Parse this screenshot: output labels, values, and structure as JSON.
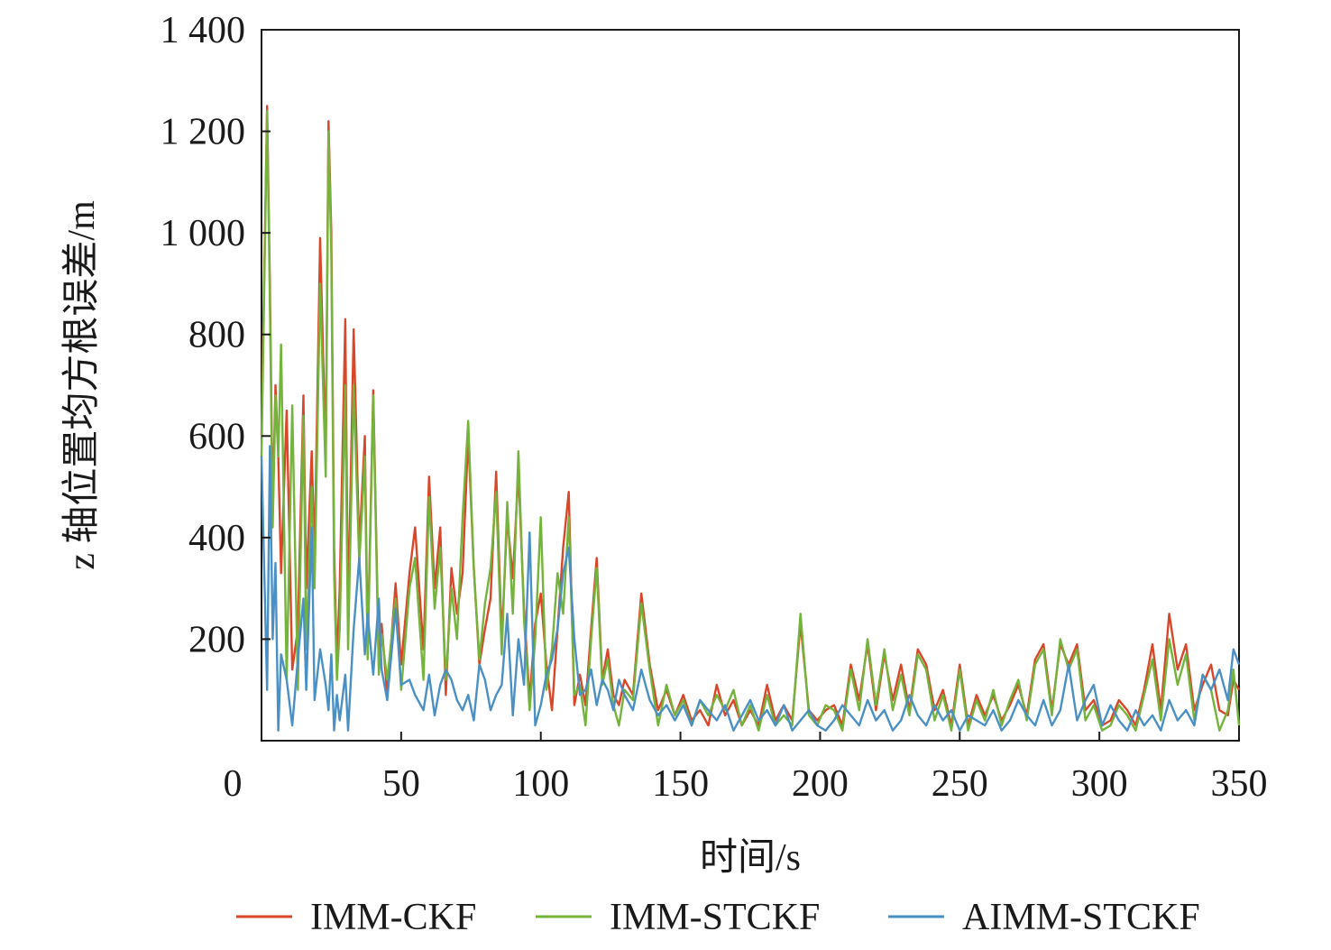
{
  "chart_data": {
    "type": "line",
    "title": "",
    "xlabel": "时间/s",
    "ylabel": "z 轴位置均方根误差/m",
    "xlim": [
      0,
      350
    ],
    "ylim": [
      0,
      1400
    ],
    "x_ticks": [
      0,
      50,
      100,
      150,
      200,
      250,
      300,
      350
    ],
    "x_tick_labels": [
      "0",
      "50",
      "100",
      "150",
      "200",
      "250",
      "300",
      "350"
    ],
    "y_ticks": [
      200,
      400,
      600,
      800,
      1000,
      1200,
      1400
    ],
    "y_tick_labels": [
      "200",
      "400",
      "600",
      "800",
      "1 000",
      "1 200",
      "1 400"
    ],
    "grid": false,
    "legend_position": "bottom",
    "series": [
      {
        "name": "IMM-CKF",
        "color": "#d9472b",
        "x": [
          0,
          2,
          3,
          4,
          5,
          6,
          7,
          9,
          11,
          13,
          15,
          16,
          18,
          19,
          21,
          23,
          24,
          25,
          26,
          27,
          28,
          30,
          31,
          33,
          35,
          37,
          38,
          40,
          42,
          43,
          45,
          48,
          50,
          53,
          55,
          58,
          60,
          62,
          64,
          66,
          68,
          70,
          72,
          74,
          76,
          78,
          80,
          82,
          84,
          86,
          88,
          90,
          92,
          94,
          96,
          98,
          100,
          102,
          104,
          106,
          108,
          110,
          112,
          114,
          116,
          118,
          120,
          122,
          124,
          126,
          128,
          130,
          133,
          136,
          139,
          142,
          145,
          148,
          151,
          154,
          157,
          160,
          163,
          166,
          169,
          172,
          175,
          178,
          181,
          184,
          187,
          190,
          193,
          196,
          199,
          202,
          205,
          208,
          211,
          214,
          217,
          220,
          223,
          226,
          229,
          232,
          235,
          238,
          241,
          244,
          247,
          250,
          253,
          256,
          259,
          262,
          265,
          268,
          271,
          274,
          277,
          280,
          283,
          286,
          289,
          292,
          295,
          298,
          301,
          304,
          307,
          310,
          313,
          316,
          319,
          322,
          325,
          328,
          331,
          334,
          337,
          340,
          343,
          346,
          348,
          350
        ],
        "y": [
          600,
          1250,
          900,
          450,
          700,
          560,
          330,
          650,
          140,
          220,
          680,
          300,
          570,
          360,
          990,
          560,
          1220,
          1000,
          380,
          150,
          300,
          830,
          250,
          810,
          380,
          600,
          180,
          690,
          150,
          230,
          90,
          310,
          150,
          330,
          420,
          180,
          520,
          300,
          420,
          90,
          340,
          250,
          330,
          600,
          340,
          150,
          220,
          280,
          530,
          200,
          440,
          320,
          530,
          260,
          80,
          230,
          290,
          150,
          60,
          220,
          380,
          490,
          70,
          130,
          70,
          220,
          360,
          120,
          180,
          90,
          70,
          120,
          90,
          290,
          150,
          60,
          100,
          50,
          90,
          40,
          60,
          30,
          110,
          50,
          80,
          30,
          60,
          30,
          110,
          40,
          70,
          40,
          230,
          60,
          40,
          60,
          70,
          30,
          150,
          80,
          190,
          60,
          170,
          80,
          150,
          60,
          180,
          150,
          60,
          100,
          30,
          150,
          30,
          90,
          50,
          90,
          40,
          70,
          110,
          50,
          160,
          190,
          60,
          190,
          150,
          190,
          60,
          80,
          30,
          40,
          80,
          60,
          30,
          100,
          190,
          60,
          250,
          140,
          190,
          60,
          110,
          150,
          60,
          50,
          120,
          100
        ]
      },
      {
        "name": "IMM-STCKF",
        "color": "#74b33c",
        "x": [
          0,
          2,
          3,
          4,
          5,
          6,
          7,
          9,
          11,
          13,
          15,
          16,
          18,
          19,
          21,
          23,
          24,
          25,
          26,
          27,
          28,
          30,
          31,
          33,
          35,
          37,
          38,
          40,
          42,
          43,
          45,
          48,
          50,
          53,
          55,
          58,
          60,
          62,
          64,
          66,
          68,
          70,
          72,
          74,
          76,
          78,
          80,
          82,
          84,
          86,
          88,
          90,
          92,
          94,
          96,
          98,
          100,
          102,
          104,
          106,
          108,
          110,
          112,
          114,
          116,
          118,
          120,
          122,
          124,
          126,
          128,
          130,
          133,
          136,
          139,
          142,
          145,
          148,
          151,
          154,
          157,
          160,
          163,
          166,
          169,
          172,
          175,
          178,
          181,
          184,
          187,
          190,
          193,
          196,
          199,
          202,
          205,
          208,
          211,
          214,
          217,
          220,
          223,
          226,
          229,
          232,
          235,
          238,
          241,
          244,
          247,
          250,
          253,
          256,
          259,
          262,
          265,
          268,
          271,
          274,
          277,
          280,
          283,
          286,
          289,
          292,
          295,
          298,
          301,
          304,
          307,
          310,
          313,
          316,
          319,
          322,
          325,
          328,
          331,
          334,
          337,
          340,
          343,
          346,
          348,
          350
        ],
        "y": [
          560,
          1240,
          860,
          420,
          680,
          560,
          780,
          120,
          660,
          100,
          640,
          180,
          500,
          300,
          900,
          520,
          1200,
          960,
          330,
          120,
          220,
          700,
          180,
          700,
          350,
          560,
          160,
          680,
          130,
          210,
          120,
          280,
          100,
          300,
          360,
          120,
          480,
          260,
          380,
          120,
          300,
          200,
          440,
          630,
          340,
          160,
          270,
          340,
          490,
          170,
          470,
          250,
          570,
          240,
          60,
          200,
          440,
          100,
          180,
          330,
          250,
          440,
          90,
          110,
          30,
          200,
          340,
          110,
          160,
          70,
          30,
          100,
          80,
          270,
          140,
          30,
          110,
          50,
          80,
          30,
          80,
          50,
          90,
          60,
          100,
          30,
          70,
          20,
          90,
          30,
          50,
          30,
          250,
          50,
          30,
          70,
          60,
          20,
          140,
          60,
          200,
          70,
          180,
          60,
          130,
          50,
          170,
          140,
          40,
          90,
          20,
          140,
          20,
          80,
          40,
          100,
          30,
          80,
          120,
          40,
          150,
          180,
          50,
          200,
          140,
          180,
          40,
          70,
          20,
          30,
          70,
          50,
          20,
          90,
          160,
          40,
          200,
          110,
          170,
          40,
          130,
          100,
          20,
          60,
          140,
          30
        ]
      },
      {
        "name": "AIMM-STCKF",
        "color": "#4a90c4",
        "x": [
          0,
          2,
          3,
          4,
          5,
          6,
          7,
          9,
          11,
          13,
          15,
          16,
          18,
          19,
          21,
          23,
          24,
          25,
          26,
          27,
          28,
          30,
          31,
          33,
          35,
          37,
          38,
          40,
          42,
          43,
          45,
          48,
          50,
          53,
          55,
          58,
          60,
          62,
          64,
          66,
          68,
          70,
          72,
          74,
          76,
          78,
          80,
          82,
          84,
          86,
          88,
          90,
          92,
          94,
          96,
          98,
          100,
          102,
          104,
          106,
          108,
          110,
          112,
          114,
          116,
          118,
          120,
          122,
          124,
          126,
          128,
          130,
          133,
          136,
          139,
          142,
          145,
          148,
          151,
          154,
          157,
          160,
          163,
          166,
          169,
          172,
          175,
          178,
          181,
          184,
          187,
          190,
          193,
          196,
          199,
          202,
          205,
          208,
          211,
          214,
          217,
          220,
          223,
          226,
          229,
          232,
          235,
          238,
          241,
          244,
          247,
          250,
          253,
          256,
          259,
          262,
          265,
          268,
          271,
          274,
          277,
          280,
          283,
          286,
          289,
          292,
          295,
          298,
          301,
          304,
          307,
          310,
          313,
          316,
          319,
          322,
          325,
          328,
          331,
          334,
          337,
          340,
          343,
          346,
          348,
          350
        ],
        "y": [
          560,
          100,
          580,
          200,
          350,
          20,
          170,
          120,
          30,
          160,
          280,
          100,
          420,
          80,
          180,
          110,
          60,
          170,
          20,
          90,
          40,
          130,
          20,
          220,
          360,
          170,
          250,
          130,
          280,
          140,
          80,
          260,
          110,
          120,
          90,
          60,
          130,
          50,
          110,
          140,
          120,
          80,
          60,
          90,
          40,
          150,
          120,
          60,
          90,
          110,
          250,
          50,
          200,
          110,
          410,
          30,
          70,
          130,
          160,
          220,
          330,
          380,
          200,
          90,
          100,
          140,
          70,
          120,
          100,
          60,
          120,
          90,
          60,
          140,
          80,
          50,
          70,
          40,
          70,
          30,
          80,
          60,
          40,
          70,
          20,
          50,
          80,
          40,
          60,
          30,
          70,
          20,
          40,
          60,
          30,
          20,
          40,
          70,
          50,
          30,
          80,
          40,
          60,
          20,
          40,
          90,
          50,
          30,
          70,
          40,
          60,
          20,
          50,
          40,
          30,
          60,
          20,
          40,
          80,
          50,
          30,
          80,
          30,
          60,
          150,
          40,
          80,
          110,
          30,
          70,
          40,
          20,
          60,
          30,
          50,
          20,
          80,
          40,
          60,
          30,
          130,
          100,
          140,
          80,
          180,
          150
        ]
      }
    ]
  }
}
